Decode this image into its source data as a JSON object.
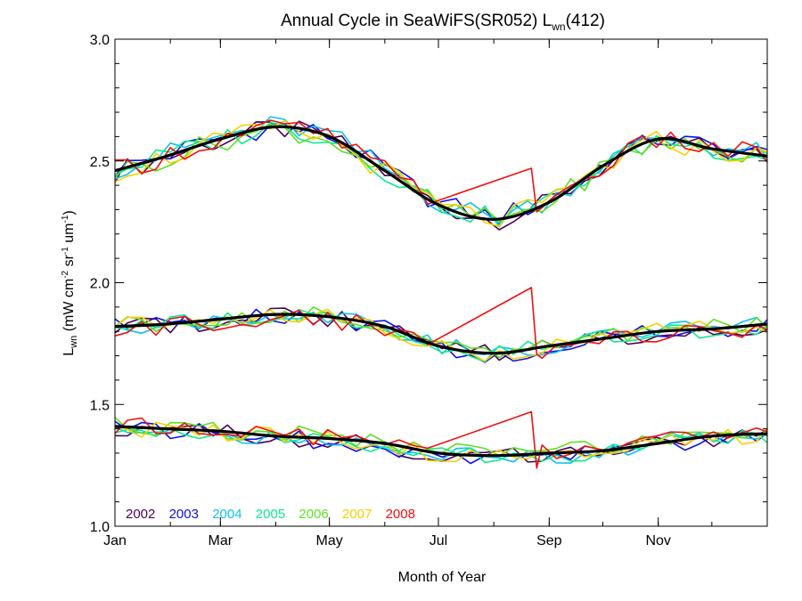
{
  "chart_data": {
    "type": "line",
    "title": {
      "main": "Annual Cycle in SeaWiFS(SR052) L",
      "sub": "wn",
      "suffix": "(412)"
    },
    "xlabel": "Month of Year",
    "ylabel": {
      "main": "L",
      "sub": "wn",
      "rest": " (mW cm",
      "sup1": "-2",
      "mid": " sr",
      "sup2": "-1",
      "end": " um",
      "sup3": "-1",
      "close": ")"
    },
    "xlim": [
      1,
      366
    ],
    "ylim": [
      1.0,
      3.0
    ],
    "x_ticks": [
      {
        "value": 1,
        "label": "Jan"
      },
      {
        "value": 60,
        "label": "Mar"
      },
      {
        "value": 121,
        "label": "May"
      },
      {
        "value": 182,
        "label": "Jul"
      },
      {
        "value": 244,
        "label": "Sep"
      },
      {
        "value": 305,
        "label": "Nov"
      }
    ],
    "y_ticks": [
      {
        "value": 1.0,
        "label": "1.0"
      },
      {
        "value": 1.5,
        "label": "1.5"
      },
      {
        "value": 2.0,
        "label": "2.0"
      },
      {
        "value": 2.5,
        "label": "2.5"
      },
      {
        "value": 3.0,
        "label": "3.0"
      }
    ],
    "years": [
      {
        "name": "2002",
        "color": "#4b0055"
      },
      {
        "name": "2003",
        "color": "#1010e0"
      },
      {
        "name": "2004",
        "color": "#10c0f0"
      },
      {
        "name": "2005",
        "color": "#10e890"
      },
      {
        "name": "2006",
        "color": "#60e020"
      },
      {
        "name": "2007",
        "color": "#f8d000"
      },
      {
        "name": "2008",
        "color": "#ee1010"
      }
    ],
    "climatology": {
      "color": "#000000",
      "x": [
        1,
        30,
        60,
        91,
        121,
        152,
        182,
        213,
        244,
        274,
        305,
        335,
        366
      ],
      "upper": [
        2.46,
        2.52,
        2.59,
        2.64,
        2.6,
        2.46,
        2.32,
        2.26,
        2.33,
        2.48,
        2.59,
        2.55,
        2.52
      ],
      "middle": [
        1.82,
        1.83,
        1.85,
        1.87,
        1.86,
        1.82,
        1.74,
        1.71,
        1.74,
        1.77,
        1.8,
        1.81,
        1.83
      ],
      "lower": [
        1.41,
        1.4,
        1.39,
        1.37,
        1.36,
        1.34,
        1.3,
        1.29,
        1.3,
        1.31,
        1.34,
        1.37,
        1.38
      ]
    },
    "band_x": [
      1,
      8,
      16,
      24,
      32,
      40,
      48,
      56,
      64,
      72,
      80,
      88,
      96,
      104,
      112,
      120,
      128,
      136,
      144,
      152,
      160,
      168,
      176,
      184,
      192,
      200,
      208,
      216,
      224,
      232,
      240,
      248,
      256,
      264,
      272,
      280,
      288,
      296,
      304,
      312,
      320,
      328,
      336,
      344,
      352,
      360,
      366
    ],
    "gap_start_day": 180,
    "gap_end_day": 240,
    "spike_day": 234,
    "spike_values": {
      "upper": 2.47,
      "middle": 1.98,
      "lower": 1.47
    }
  }
}
